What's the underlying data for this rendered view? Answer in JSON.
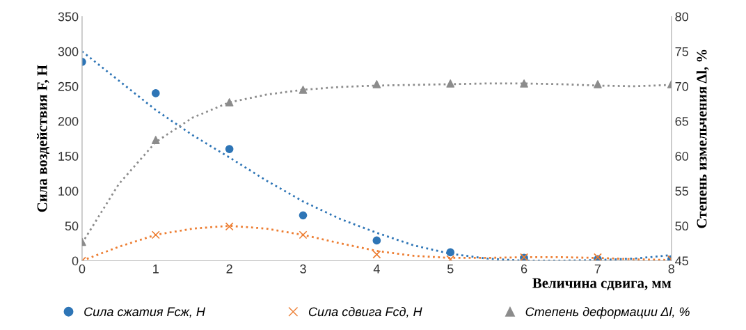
{
  "chart_data": {
    "type": "scatter",
    "xlabel": "Величина сдвига, мм",
    "ylabel": "Сила воздействия F, Н",
    "y2label": "Степень измельчения Δl, %",
    "xlim": [
      0,
      8
    ],
    "xticks": [
      0,
      1,
      2,
      3,
      4,
      5,
      6,
      7,
      8
    ],
    "ylim": [
      0,
      350
    ],
    "yticks": [
      0,
      50,
      100,
      150,
      200,
      250,
      300,
      350
    ],
    "y2lim": [
      45,
      80
    ],
    "y2ticks": [
      45,
      50,
      55,
      60,
      65,
      70,
      75,
      80
    ],
    "grid": false,
    "legend": "bottom",
    "series": [
      {
        "name": "Сила сжатия Fсж, Н",
        "marker": "circle",
        "color": "#2e75b6",
        "x": [
          0,
          1,
          2,
          3,
          4,
          5,
          6,
          7,
          8
        ],
        "values": [
          285,
          240,
          160,
          65,
          29,
          12,
          4,
          2,
          2
        ]
      },
      {
        "name": "Сила сдвига Fсд, Н",
        "marker": "cross",
        "color": "#ed7d31",
        "x": [
          0,
          1,
          2,
          3,
          4,
          5,
          6,
          7,
          8
        ],
        "values": [
          0,
          37,
          49,
          37,
          9,
          2,
          5,
          5,
          2
        ]
      },
      {
        "name": "Степень деформации Δl, %",
        "marker": "triangle",
        "axis": "y2",
        "color": "#8c8c8c",
        "x": [
          0,
          1,
          2,
          3,
          4,
          5,
          6,
          7,
          8
        ],
        "values": [
          47.7,
          62.3,
          67.7,
          69.5,
          70.3,
          70.4,
          70.4,
          70.3,
          70.3
        ]
      },
      {
        "type": "line",
        "line_style": "dotted",
        "color": "#2e75b6",
        "x": [
          0,
          0.5,
          1,
          1.5,
          2,
          2.5,
          3,
          3.5,
          4,
          4.5,
          5,
          5.5,
          6,
          6.5,
          7,
          7.5,
          8
        ],
        "values": [
          300,
          258,
          216,
          180,
          148,
          115,
          85,
          60,
          40,
          22,
          10,
          3,
          0,
          0,
          1,
          3,
          8
        ]
      },
      {
        "type": "line",
        "line_style": "dotted",
        "color": "#ed7d31",
        "x": [
          0,
          0.5,
          1,
          1.5,
          2,
          2.5,
          3,
          3.5,
          4,
          4.5,
          5,
          5.5,
          6,
          6.5,
          7,
          7.5,
          8
        ],
        "values": [
          0,
          20,
          37,
          46,
          50,
          46,
          37,
          25,
          14,
          7,
          4,
          4,
          5,
          5,
          4,
          2,
          1
        ]
      },
      {
        "type": "line",
        "line_style": "dotted",
        "axis": "y2",
        "color": "#8c8c8c",
        "x": [
          0,
          0.5,
          1,
          1.5,
          2,
          2.5,
          3,
          3.5,
          4,
          4.5,
          5,
          5.5,
          6,
          6.5,
          7,
          7.5,
          8
        ],
        "values": [
          47.5,
          56,
          62,
          65.5,
          67.7,
          68.8,
          69.5,
          69.9,
          70.1,
          70.2,
          70.3,
          70.4,
          70.4,
          70.3,
          70.1,
          70,
          70.2
        ]
      }
    ]
  }
}
